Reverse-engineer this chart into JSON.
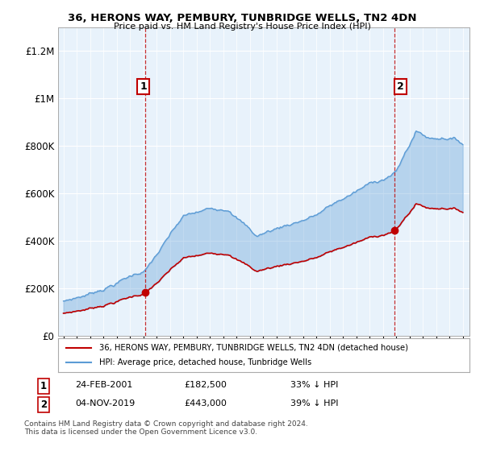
{
  "title": "36, HERONS WAY, PEMBURY, TUNBRIDGE WELLS, TN2 4DN",
  "subtitle": "Price paid vs. HM Land Registry's House Price Index (HPI)",
  "hpi_label": "HPI: Average price, detached house, Tunbridge Wells",
  "property_label": "36, HERONS WAY, PEMBURY, TUNBRIDGE WELLS, TN2 4DN (detached house)",
  "footnote": "Contains HM Land Registry data © Crown copyright and database right 2024.\nThis data is licensed under the Open Government Licence v3.0.",
  "sale1": {
    "label": "1",
    "date": "24-FEB-2001",
    "price": 182500,
    "pct": "33% ↓ HPI"
  },
  "sale2": {
    "label": "2",
    "date": "04-NOV-2019",
    "price": 443000,
    "pct": "39% ↓ HPI"
  },
  "hpi_color": "#5b9bd5",
  "property_color": "#c00000",
  "sale_marker_color": "#c00000",
  "annotation_box_color": "#c00000",
  "fill_color": "#ddeeff",
  "ylim": [
    0,
    1300000
  ],
  "yticks": [
    0,
    200000,
    400000,
    600000,
    800000,
    1000000,
    1200000
  ],
  "background_color": "#ffffff",
  "plot_bg_color": "#ffffff",
  "grid_color": "#cccccc",
  "sale1_year": 2001.15,
  "sale1_price": 182500,
  "sale2_year": 2019.84,
  "sale2_price": 443000
}
